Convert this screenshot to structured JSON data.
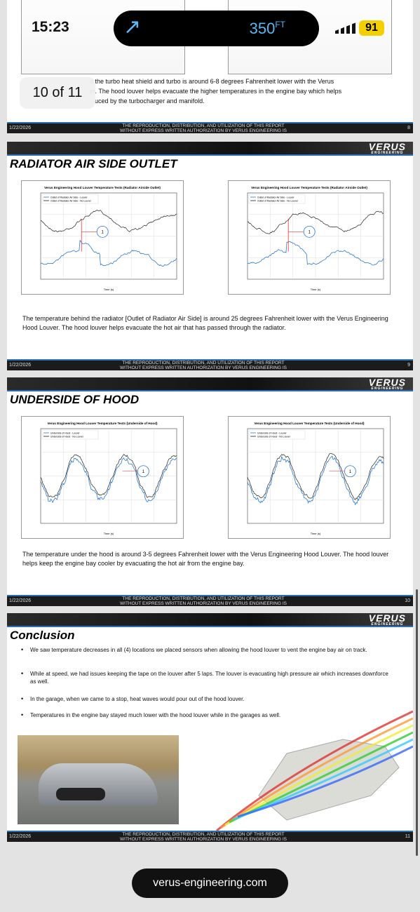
{
  "status_bar": {
    "time": "15:23",
    "distance": "350",
    "distance_unit": "FT",
    "battery": "91"
  },
  "page_indicator": "10 of 11",
  "slides": [
    {
      "body_lines": [
        "d the turbo heat shield and turbo is around 6-8 degrees Fahrenheit lower with the Verus",
        "er. The hood louver helps evacuate the higher temperatures in the engine bay which helps",
        "uced by the turbocharger and manifold."
      ],
      "footer": {
        "date": "1/22/2026",
        "notice": "THE REPRODUCTION, DISTRIBUTION, AND UTILIZATION OF THIS REPORT WITHOUT EXPRESS WRITTEN AUTHORIZATION BY VERUS ENGINEERING IS PROHIBITED",
        "page": "8"
      }
    },
    {
      "brand": "VERUS",
      "brand_sub": "ENGINEERING",
      "title": "RADIATOR AIR SIDE OUTLET",
      "charts": [
        {
          "title": "Verus Engineering Hood Louver Temperature Tests (Radiator Airside Outlet)",
          "legend": [
            "Outlet of Radiator Air Side - Louver",
            "Outlet of Radiator Air Side - No Louver"
          ],
          "callout": "1",
          "x_label": "Time (s)"
        },
        {
          "title": "Verus Engineering Hood Louver Temperature Tests (Radiator Airside Outlet)",
          "legend": [
            "Outlet of Radiator Air Side - Louver",
            "Outlet of Radiator Air Side - No Louver"
          ],
          "callout": "1",
          "x_label": "Time (s)"
        }
      ],
      "body": "The temperature behind the radiator [Outlet of Radiator Air Side] is around 25 degrees Fahrenheit lower with the Verus Engineering Hood Louver. The hood louver helps evacuate the hot air that has passed through the radiator.",
      "footer": {
        "date": "1/22/2026",
        "notice": "THE REPRODUCTION, DISTRIBUTION, AND UTILIZATION OF THIS REPORT WITHOUT EXPRESS WRITTEN AUTHORIZATION BY VERUS ENGINEERING IS PROHIBITED",
        "page": "9"
      }
    },
    {
      "brand": "VERUS",
      "brand_sub": "ENGINEERING",
      "title": "UNDERSIDE OF HOOD",
      "charts": [
        {
          "title": "Verus Engineering Hood Louver Temperature Tests (Underside of Hood)",
          "legend": [
            "Underside of Hood - Louver",
            "Underside of Hood - No Louver"
          ],
          "callout": "1",
          "x_label": "Time (s)"
        },
        {
          "title": "Verus Engineering Hood Louver Temperature Tests (Underside of Hood)",
          "legend": [
            "Underside of Hood - Louver",
            "Underside of Hood - No Louver"
          ],
          "callout": "1",
          "x_label": "Time (s)"
        }
      ],
      "body": "The temperature under the hood is around 3-5 degrees Fahrenheit lower with the Verus Engineering Hood Louver. The hood louver helps keep the engine bay cooler by evacuating the hot air from the engine bay.",
      "footer": {
        "date": "1/22/2026",
        "notice": "THE REPRODUCTION, DISTRIBUTION, AND UTILIZATION OF THIS REPORT WITHOUT EXPRESS WRITTEN AUTHORIZATION BY VERUS ENGINEERING IS PROHIBITED",
        "page": "10"
      }
    },
    {
      "brand": "VERUS",
      "brand_sub": "ENGINEERING",
      "title": "Conclusion",
      "bullets": [
        "We saw temperature decreases in all (4) locations we placed sensors when allowing the hood louver to vent the engine bay air on track.",
        "While at speed, we had issues keeping the tape on the louver after 5 laps.  The louver is evacuating high pressure air which increases downforce as well.",
        "In the garage, when we came to a stop, heat waves would pour out of the hood louver.",
        "Temperatures in the engine bay stayed much lower with the hood louver while in the garages as well."
      ],
      "footer": {
        "date": "1/22/2026",
        "notice": "THE REPRODUCTION, DISTRIBUTION, AND UTILIZATION OF THIS REPORT WITHOUT EXPRESS WRITTEN AUTHORIZATION BY VERUS ENGINEERING IS PROHIBITED",
        "page": "11"
      }
    }
  ],
  "url": "verus-engineering.com"
}
